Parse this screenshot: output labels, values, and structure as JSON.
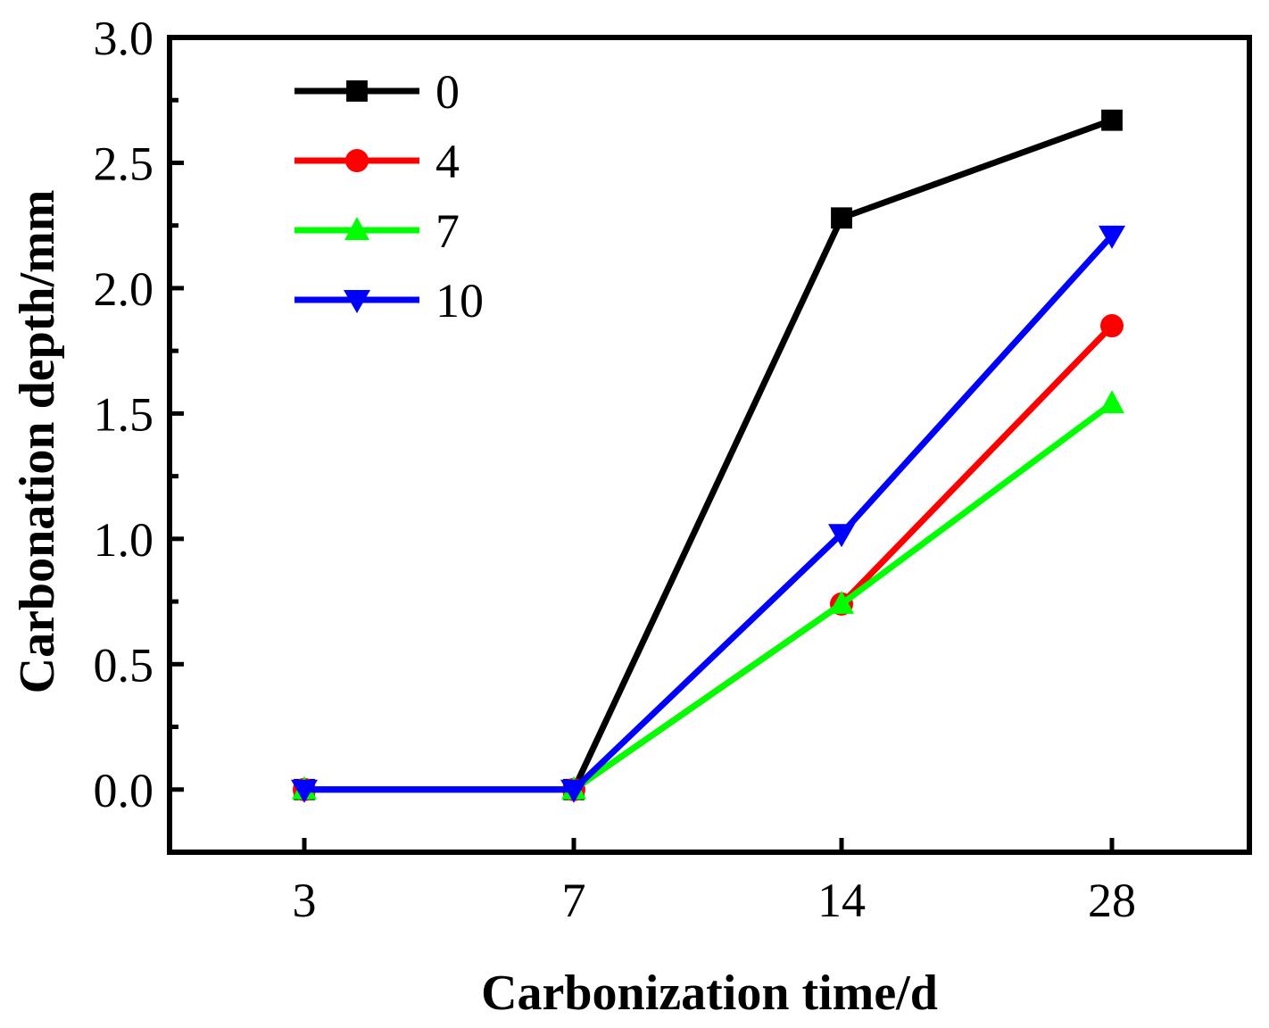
{
  "chart_data": {
    "type": "line",
    "title": "",
    "xlabel": "Carbonization time/d",
    "ylabel": "Carbonation depth/mm",
    "categories": [
      "3",
      "7",
      "14",
      "28"
    ],
    "ylim": [
      -0.25,
      3.0
    ],
    "yticks": [
      0.0,
      0.5,
      1.0,
      1.5,
      2.0,
      2.5,
      3.0
    ],
    "ytick_labels": [
      "0.0",
      "0.5",
      "1.0",
      "1.5",
      "2.0",
      "2.5",
      "3.0"
    ],
    "legend_position": "top-left",
    "series": [
      {
        "name": "0",
        "values": [
          0.0,
          0.0,
          2.28,
          2.67
        ],
        "color": "#000000",
        "marker": "square"
      },
      {
        "name": "4",
        "values": [
          0.0,
          0.0,
          0.74,
          1.85
        ],
        "color": "#ff0000",
        "marker": "circle"
      },
      {
        "name": "7",
        "values": [
          0.0,
          0.0,
          0.74,
          1.54
        ],
        "color": "#00ff00",
        "marker": "triangle-up"
      },
      {
        "name": "10",
        "values": [
          0.0,
          0.0,
          1.02,
          2.21
        ],
        "color": "#0000ff",
        "marker": "triangle-down"
      }
    ]
  }
}
